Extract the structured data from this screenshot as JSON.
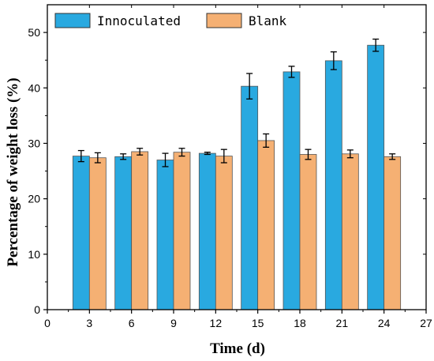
{
  "chart_data": {
    "type": "bar",
    "categories": [
      "3",
      "6",
      "9",
      "12",
      "15",
      "18",
      "21",
      "24"
    ],
    "x_ticks": [
      "0",
      "3",
      "6",
      "9",
      "12",
      "15",
      "18",
      "21",
      "24",
      "27"
    ],
    "y_ticks": [
      "0",
      "10",
      "20",
      "30",
      "40",
      "50"
    ],
    "xlim": [
      0,
      27
    ],
    "ylim": [
      0,
      55
    ],
    "xlabel": "Time (d)",
    "ylabel": "Percentage of weight loss (%)",
    "legend_position": "top-left",
    "grid": false,
    "series": [
      {
        "name": "Innoculated",
        "color": "#29a9e0",
        "values": [
          27.7,
          27.6,
          27.0,
          28.2,
          40.3,
          42.9,
          44.9,
          47.7
        ],
        "errors": [
          1.0,
          0.5,
          1.2,
          0.2,
          2.3,
          1.0,
          1.6,
          1.1
        ]
      },
      {
        "name": "Blank",
        "color": "#f5b073",
        "values": [
          27.4,
          28.5,
          28.4,
          27.7,
          30.5,
          28.0,
          28.1,
          27.6
        ],
        "errors": [
          0.9,
          0.6,
          0.7,
          1.2,
          1.2,
          0.9,
          0.7,
          0.5
        ]
      }
    ]
  }
}
